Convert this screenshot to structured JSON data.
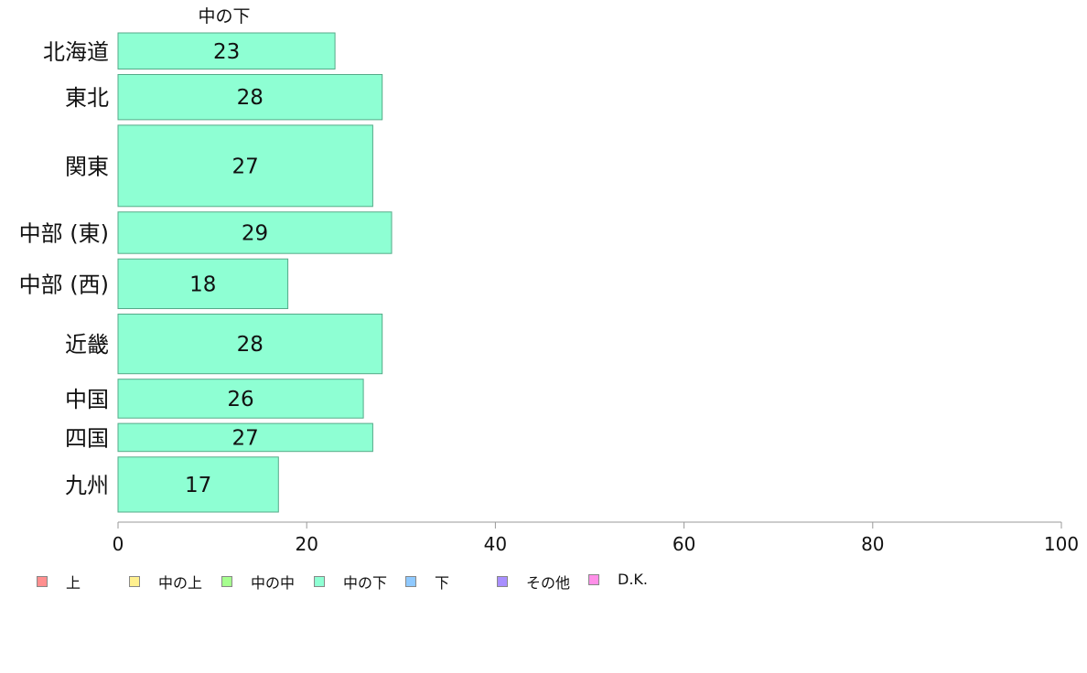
{
  "chart_data": {
    "type": "bar",
    "orientation": "horizontal",
    "title": "中の下",
    "categories": [
      "北海道",
      "東北",
      "関東",
      "中部 (東)",
      "中部 (西)",
      "近畿",
      "中国",
      "四国",
      "九州"
    ],
    "series": [
      {
        "name": "中の下",
        "values": [
          23,
          28,
          27,
          29,
          18,
          28,
          26,
          27,
          17
        ]
      }
    ],
    "bar_weights": [
      4,
      5,
      9,
      4.6,
      5.5,
      6.6,
      4.3,
      3.1,
      6.1
    ],
    "xlim": [
      0,
      100
    ],
    "xticks": [
      0,
      20,
      40,
      60,
      80,
      100
    ],
    "grid": false,
    "bar_color": "#8effd3",
    "bar_stroke": "#55aa88",
    "legend_position": "bottom",
    "legend": [
      {
        "label": "上",
        "color": "#ff8f8f"
      },
      {
        "label": "中の上",
        "color": "#fff08f"
      },
      {
        "label": "中の中",
        "color": "#a6ff8f"
      },
      {
        "label": "中の下",
        "color": "#8effd3"
      },
      {
        "label": "下",
        "color": "#8fc9ff"
      },
      {
        "label": "その他",
        "color": "#a88fff"
      },
      {
        "label": "D.K.",
        "color": "#ff8fe8"
      }
    ]
  }
}
